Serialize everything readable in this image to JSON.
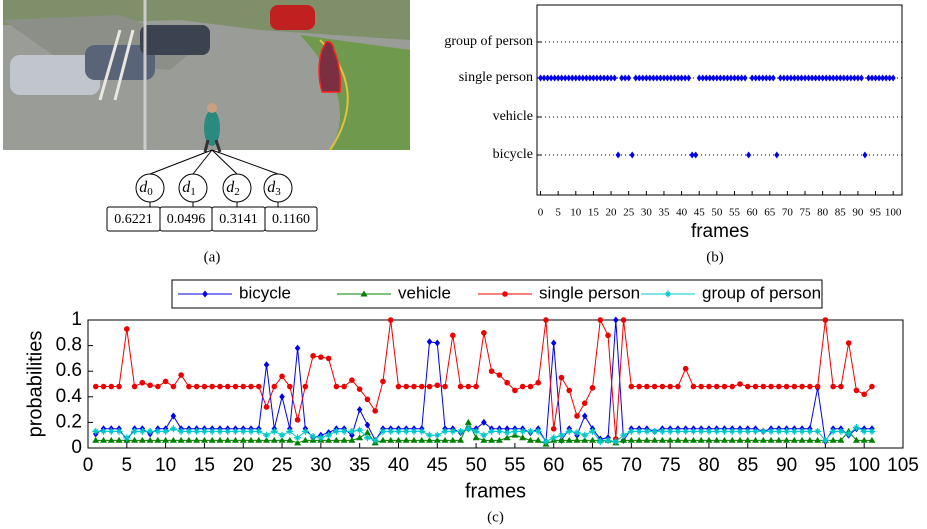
{
  "panel_a": {
    "nodes": [
      {
        "label": "d",
        "subscript": "0"
      },
      {
        "label": "d",
        "subscript": "1"
      },
      {
        "label": "d",
        "subscript": "2"
      },
      {
        "label": "d",
        "subscript": "3"
      }
    ],
    "scores": [
      "0.6221",
      "0.0496",
      "0.3141",
      "0.1160"
    ],
    "caption": "(a)"
  },
  "chart_data": [
    {
      "type": "dot",
      "categories": [
        "group of person",
        "single person",
        "vehicle",
        "bicycle"
      ],
      "detections": [
        [],
        [
          0,
          1,
          2,
          3,
          4,
          5,
          6,
          7,
          8,
          9,
          10,
          11,
          12,
          13,
          14,
          15,
          16,
          17,
          18,
          19,
          20,
          21,
          23,
          24,
          25,
          27,
          28,
          29,
          30,
          31,
          32,
          33,
          34,
          35,
          36,
          37,
          38,
          39,
          40,
          41,
          42,
          45,
          46,
          47,
          48,
          49,
          50,
          51,
          52,
          53,
          54,
          55,
          56,
          57,
          58,
          60,
          61,
          62,
          63,
          64,
          65,
          66,
          68,
          69,
          70,
          71,
          72,
          73,
          74,
          75,
          76,
          77,
          78,
          79,
          80,
          81,
          82,
          83,
          84,
          85,
          86,
          87,
          88,
          89,
          90,
          91,
          93,
          94,
          95,
          96,
          97,
          98,
          99,
          100
        ],
        [],
        [
          22,
          26,
          43,
          44,
          59,
          67,
          92
        ]
      ],
      "color": "#0000ee",
      "xlim": [
        -1,
        102.5
      ],
      "xticks": [
        0,
        5,
        10,
        15,
        20,
        25,
        30,
        35,
        40,
        45,
        50,
        55,
        60,
        65,
        70,
        75,
        80,
        85,
        90,
        95,
        100
      ],
      "xlabel": "frames",
      "caption": "(b)",
      "grid": true
    },
    {
      "type": "line",
      "x": [
        1,
        2,
        3,
        4,
        5,
        6,
        7,
        8,
        9,
        10,
        11,
        12,
        13,
        14,
        15,
        16,
        17,
        18,
        19,
        20,
        21,
        22,
        23,
        24,
        25,
        26,
        27,
        28,
        29,
        30,
        31,
        32,
        33,
        34,
        35,
        36,
        37,
        38,
        39,
        40,
        41,
        42,
        43,
        44,
        45,
        46,
        47,
        48,
        49,
        50,
        51,
        52,
        53,
        54,
        55,
        56,
        57,
        58,
        59,
        60,
        61,
        62,
        63,
        64,
        65,
        66,
        67,
        68,
        69,
        70,
        71,
        72,
        73,
        74,
        75,
        76,
        77,
        78,
        79,
        80,
        81,
        82,
        83,
        84,
        85,
        86,
        87,
        88,
        89,
        90,
        91,
        92,
        93,
        94,
        95,
        96,
        97,
        98,
        99,
        100,
        101
      ],
      "series": [
        {
          "name": "bicycle",
          "color": "#0000ee",
          "marker": "diamond",
          "values": [
            0.11,
            0.15,
            0.15,
            0.15,
            0.06,
            0.15,
            0.15,
            0.11,
            0.15,
            0.15,
            0.25,
            0.15,
            0.15,
            0.15,
            0.15,
            0.15,
            0.15,
            0.15,
            0.15,
            0.15,
            0.15,
            0.15,
            0.65,
            0.15,
            0.4,
            0.15,
            0.78,
            0.15,
            0.08,
            0.1,
            0.12,
            0.15,
            0.15,
            0.1,
            0.3,
            0.18,
            0.06,
            0.15,
            0.15,
            0.15,
            0.15,
            0.15,
            0.15,
            0.83,
            0.82,
            0.15,
            0.15,
            0.12,
            0.15,
            0.15,
            0.2,
            0.15,
            0.15,
            0.15,
            0.15,
            0.15,
            0.12,
            0.15,
            0.05,
            0.82,
            0.06,
            0.15,
            0.1,
            0.25,
            0.15,
            0.07,
            0.08,
            1.0,
            0.06,
            0.15,
            0.15,
            0.15,
            0.13,
            0.15,
            0.15,
            0.15,
            0.15,
            0.15,
            0.15,
            0.15,
            0.15,
            0.15,
            0.15,
            0.15,
            0.15,
            0.15,
            0.13,
            0.15,
            0.15,
            0.15,
            0.15,
            0.15,
            0.15,
            0.47,
            0.05,
            0.15,
            0.15,
            0.1,
            0.15,
            0.15,
            0.15
          ]
        },
        {
          "name": "vehicle",
          "color": "#008000",
          "marker": "triangle",
          "values": [
            0.06,
            0.06,
            0.06,
            0.06,
            0.06,
            0.06,
            0.06,
            0.06,
            0.06,
            0.06,
            0.06,
            0.06,
            0.06,
            0.06,
            0.06,
            0.06,
            0.06,
            0.06,
            0.06,
            0.06,
            0.06,
            0.06,
            0.06,
            0.06,
            0.06,
            0.06,
            0.04,
            0.06,
            0.06,
            0.06,
            0.06,
            0.06,
            0.06,
            0.06,
            0.08,
            0.12,
            0.04,
            0.06,
            0.06,
            0.06,
            0.06,
            0.06,
            0.06,
            0.06,
            0.06,
            0.06,
            0.06,
            0.06,
            0.2,
            0.08,
            0.06,
            0.06,
            0.06,
            0.08,
            0.1,
            0.08,
            0.06,
            0.06,
            0.03,
            0.06,
            0.06,
            0.06,
            0.06,
            0.06,
            0.06,
            0.06,
            0.06,
            0.04,
            0.06,
            0.06,
            0.06,
            0.06,
            0.06,
            0.06,
            0.06,
            0.06,
            0.06,
            0.06,
            0.06,
            0.06,
            0.06,
            0.06,
            0.06,
            0.06,
            0.06,
            0.06,
            0.06,
            0.06,
            0.06,
            0.06,
            0.06,
            0.06,
            0.06,
            0.06,
            0.06,
            0.06,
            0.06,
            0.13,
            0.06,
            0.06,
            0.06
          ]
        },
        {
          "name": "single person",
          "color": "#ee0000",
          "marker": "circle",
          "values": [
            0.48,
            0.48,
            0.48,
            0.48,
            0.93,
            0.48,
            0.51,
            0.49,
            0.48,
            0.52,
            0.48,
            0.57,
            0.48,
            0.48,
            0.48,
            0.48,
            0.48,
            0.48,
            0.48,
            0.48,
            0.48,
            0.48,
            0.32,
            0.48,
            0.56,
            0.48,
            0.22,
            0.48,
            0.72,
            0.71,
            0.7,
            0.48,
            0.48,
            0.53,
            0.46,
            0.38,
            0.29,
            0.52,
            1.0,
            0.48,
            0.48,
            0.48,
            0.48,
            0.48,
            0.49,
            0.48,
            0.88,
            0.48,
            0.48,
            0.48,
            0.9,
            0.6,
            0.57,
            0.51,
            0.45,
            0.48,
            0.48,
            0.51,
            1.0,
            0.15,
            0.55,
            0.45,
            0.25,
            0.35,
            0.47,
            1.0,
            0.88,
            0.07,
            1.0,
            0.48,
            0.48,
            0.48,
            0.48,
            0.48,
            0.48,
            0.48,
            0.62,
            0.48,
            0.48,
            0.48,
            0.48,
            0.48,
            0.48,
            0.5,
            0.48,
            0.48,
            0.48,
            0.48,
            0.48,
            0.48,
            0.48,
            0.48,
            0.48,
            0.48,
            1.0,
            0.48,
            0.48,
            0.82,
            0.45,
            0.42,
            0.48
          ]
        },
        {
          "name": "group of person",
          "color": "#00c8c8",
          "marker": "star",
          "values": [
            0.13,
            0.13,
            0.13,
            0.13,
            0.08,
            0.13,
            0.13,
            0.13,
            0.13,
            0.13,
            0.15,
            0.13,
            0.13,
            0.13,
            0.13,
            0.13,
            0.13,
            0.13,
            0.13,
            0.13,
            0.13,
            0.13,
            0.1,
            0.13,
            0.1,
            0.13,
            0.08,
            0.13,
            0.09,
            0.08,
            0.1,
            0.13,
            0.13,
            0.13,
            0.14,
            0.08,
            0.06,
            0.13,
            0.13,
            0.13,
            0.13,
            0.13,
            0.13,
            0.1,
            0.1,
            0.13,
            0.13,
            0.13,
            0.15,
            0.13,
            0.1,
            0.13,
            0.13,
            0.12,
            0.13,
            0.13,
            0.13,
            0.13,
            0.05,
            0.08,
            0.1,
            0.13,
            0.12,
            0.1,
            0.13,
            0.05,
            0.06,
            0.05,
            0.1,
            0.13,
            0.13,
            0.13,
            0.13,
            0.13,
            0.13,
            0.13,
            0.13,
            0.13,
            0.13,
            0.13,
            0.13,
            0.13,
            0.13,
            0.13,
            0.13,
            0.13,
            0.13,
            0.13,
            0.13,
            0.13,
            0.13,
            0.13,
            0.13,
            0.13,
            0.06,
            0.13,
            0.13,
            0.11,
            0.16,
            0.13,
            0.13
          ]
        }
      ],
      "xlim": [
        0,
        105
      ],
      "xticks": [
        0,
        5,
        10,
        15,
        20,
        25,
        30,
        35,
        40,
        45,
        50,
        55,
        60,
        65,
        70,
        75,
        80,
        85,
        90,
        95,
        100,
        105
      ],
      "ylim": [
        0,
        1
      ],
      "yticks": [
        0,
        0.2,
        0.4,
        0.6,
        0.8,
        1
      ],
      "xlabel": "frames",
      "ylabel": "probabilities",
      "caption": "(c)",
      "legend": "top"
    }
  ]
}
